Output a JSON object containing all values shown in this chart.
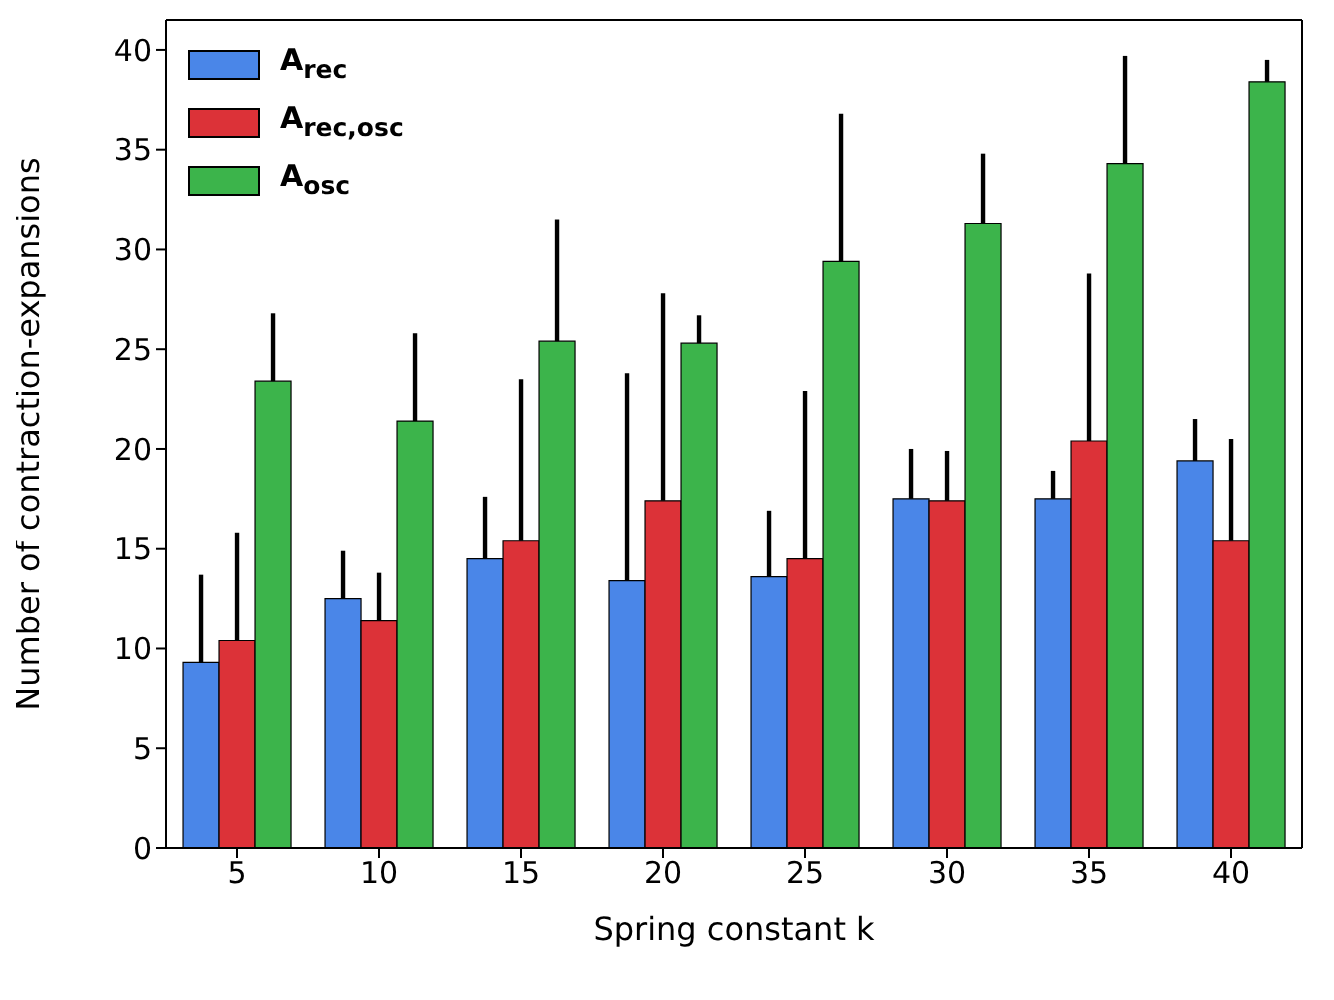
{
  "chart_data": {
    "type": "bar",
    "xlabel": "Spring constant k",
    "ylabel": "Number of contraction-expansions",
    "categories": [
      "5",
      "10",
      "15",
      "20",
      "25",
      "30",
      "35",
      "40"
    ],
    "series": [
      {
        "name": "A$_{rec}$",
        "color": "#4a86e8",
        "values": [
          9.3,
          12.5,
          14.5,
          13.4,
          13.6,
          17.5,
          17.5,
          19.4
        ],
        "errors": [
          [
            9.3,
            13.7
          ],
          [
            12.5,
            14.9
          ],
          [
            14.5,
            17.6
          ],
          [
            13.4,
            23.8
          ],
          [
            13.6,
            16.9
          ],
          [
            17.5,
            20
          ],
          [
            17.5,
            18.9
          ],
          [
            19.4,
            21.5
          ]
        ]
      },
      {
        "name": "A$_{rec,osc}$",
        "color": "#dc3238",
        "values": [
          10.4,
          11.4,
          15.4,
          17.4,
          14.5,
          17.4,
          20.4,
          15.4
        ],
        "errors": [
          [
            10.4,
            15.8
          ],
          [
            11.4,
            13.8
          ],
          [
            15.4,
            23.5
          ],
          [
            17.4,
            27.8
          ],
          [
            14.5,
            22.9
          ],
          [
            17.4,
            19.9
          ],
          [
            20.4,
            28.8
          ],
          [
            15.4,
            20.5
          ]
        ]
      },
      {
        "name": "A$_{osc}$",
        "color": "#3cb44b",
        "values": [
          23.4,
          21.4,
          25.4,
          25.3,
          29.4,
          31.3,
          34.3,
          38.4
        ],
        "errors": [
          [
            23.4,
            26.8
          ],
          [
            21.4,
            25.8
          ],
          [
            25.4,
            31.5
          ],
          [
            25.3,
            26.7
          ],
          [
            29.4,
            36.8
          ],
          [
            31.3,
            34.8
          ],
          [
            34.3,
            39.7
          ],
          [
            38.4,
            39.5
          ]
        ]
      }
    ],
    "ylim": [
      0,
      41.5
    ],
    "yticks": [
      0,
      5,
      10,
      15,
      20,
      25,
      30,
      35,
      40
    ],
    "legend": "top left"
  }
}
